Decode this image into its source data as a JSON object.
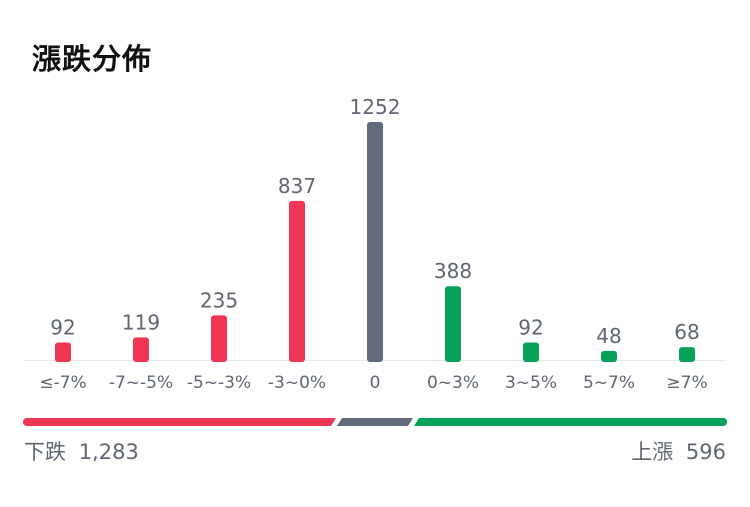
{
  "title": "漲跌分佈",
  "colors": {
    "down": "#f03654",
    "flat": "#626b7e",
    "up": "#06a25a",
    "label": "#5f6673",
    "baseline": "#e6e8ec"
  },
  "chart_data": {
    "type": "bar",
    "categories": [
      "≤-7%",
      "-7~-5%",
      "-5~-3%",
      "-3~0%",
      "0",
      "0~3%",
      "3~5%",
      "5~7%",
      "≥7%"
    ],
    "values": [
      92,
      119,
      235,
      837,
      1252,
      388,
      92,
      48,
      68
    ],
    "value_labels": [
      "92",
      "119",
      "235",
      "837",
      "1252",
      "388",
      "92",
      "48",
      "68"
    ],
    "bar_groups": [
      "down",
      "down",
      "down",
      "down",
      "flat",
      "up",
      "up",
      "up",
      "up"
    ],
    "ylim": [
      0,
      1252
    ]
  },
  "summary": {
    "down_label": "下跌",
    "down_count": "1,283",
    "up_label": "上漲",
    "up_count": "596"
  }
}
